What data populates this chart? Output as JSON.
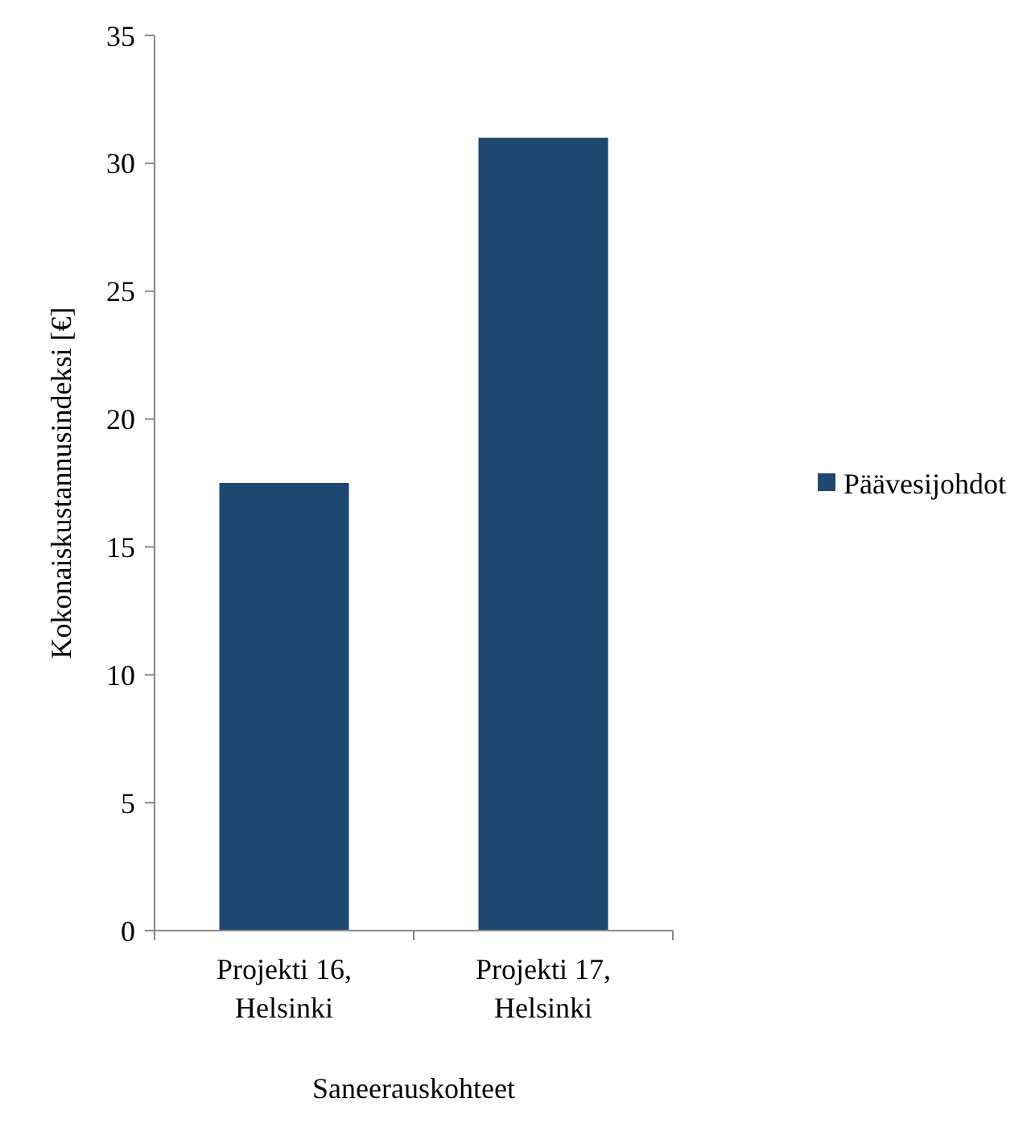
{
  "chart_data": {
    "type": "bar",
    "categories": [
      "Projekti 16, Helsinki",
      "Projekti 17, Helsinki"
    ],
    "series": [
      {
        "name": "Päävesijohdot",
        "color": "#1f4870",
        "values": [
          17.5,
          31
        ]
      }
    ],
    "xlabel": "Saneerauskohteet",
    "ylabel": "Kokonaiskustannusindeksi [€]",
    "ylim": [
      0,
      35
    ],
    "yticks": [
      0,
      5,
      10,
      15,
      20,
      25,
      30,
      35
    ],
    "grid": false,
    "legend": "right"
  }
}
